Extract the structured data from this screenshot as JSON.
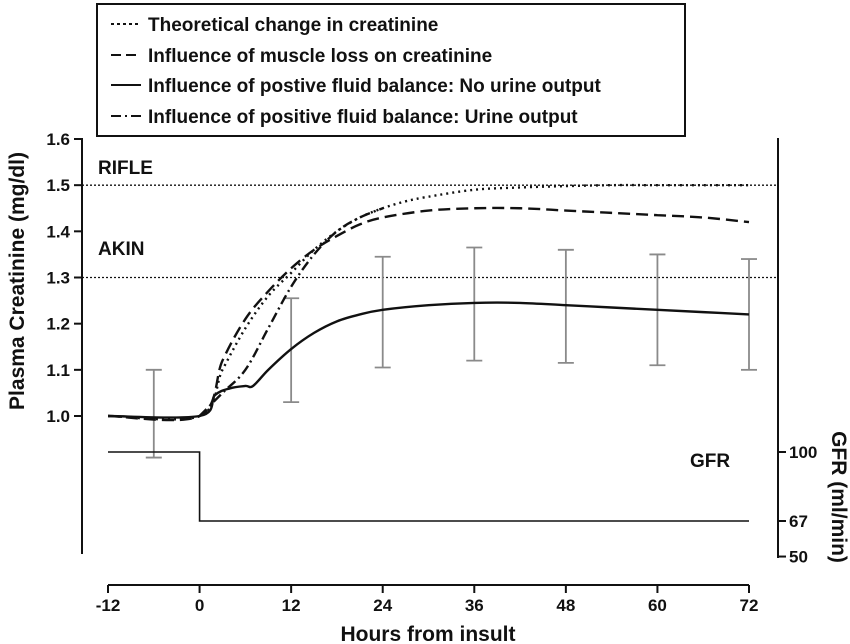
{
  "chart_data": {
    "type": "line",
    "xlabel": "Hours from insult",
    "ylabel": "Plasma Creatinine (mg/dl)",
    "y2label": "GFR (ml/min)",
    "xlim": [
      -12,
      72
    ],
    "ylim": [
      0.0,
      1.6
    ],
    "x_ticks": [
      "-12",
      "0",
      "12",
      "24",
      "36",
      "48",
      "60",
      "72"
    ],
    "y_ticks": [
      "1.0",
      "1.1",
      "1.2",
      "1.3",
      "1.4",
      "1.5",
      "1.6"
    ],
    "y2_ticks": [
      "100",
      "67",
      "50"
    ],
    "legend": {
      "placement": "top-left",
      "entries": [
        "Theoretical change in creatinine",
        "Influence of muscle loss on creatinine",
        "Influence of postive fluid balance: No urine output",
        "Influence of positive fluid balance: Urine output"
      ]
    },
    "thresholds": [
      {
        "label": "RIFLE",
        "y": 1.5
      },
      {
        "label": "AKIN",
        "y": 1.3
      }
    ],
    "gfr_label": "GFR",
    "series": [
      {
        "name": "Theoretical change in creatinine",
        "style": "dotted",
        "x": [
          -12,
          0,
          3,
          6,
          9,
          12,
          15,
          18,
          21,
          24,
          27,
          30,
          36,
          42,
          48,
          54,
          60,
          66,
          72
        ],
        "y": [
          1.0,
          1.0,
          1.1,
          1.19,
          1.26,
          1.31,
          1.36,
          1.4,
          1.43,
          1.45,
          1.465,
          1.475,
          1.49,
          1.495,
          1.498,
          1.5,
          1.5,
          1.5,
          1.5
        ]
      },
      {
        "name": "Influence of muscle loss on creatinine",
        "style": "long-dash",
        "x": [
          -12,
          0,
          3,
          6,
          9,
          12,
          15,
          18,
          21,
          24,
          30,
          36,
          42,
          48,
          54,
          60,
          66,
          72
        ],
        "y": [
          1.0,
          1.0,
          1.12,
          1.21,
          1.27,
          1.32,
          1.36,
          1.39,
          1.415,
          1.43,
          1.445,
          1.45,
          1.45,
          1.445,
          1.44,
          1.435,
          1.43,
          1.42
        ]
      },
      {
        "name": "Influence of postive fluid balance: No urine output",
        "style": "solid",
        "x": [
          -12,
          0,
          2,
          4,
          6,
          7,
          9,
          12,
          15,
          18,
          21,
          24,
          30,
          36,
          42,
          48,
          54,
          60,
          66,
          72
        ],
        "y": [
          1.0,
          1.0,
          1.045,
          1.06,
          1.065,
          1.065,
          1.1,
          1.145,
          1.18,
          1.205,
          1.22,
          1.23,
          1.24,
          1.245,
          1.245,
          1.24,
          1.235,
          1.23,
          1.225,
          1.22
        ]
      },
      {
        "name": "Influence of positive fluid balance: Urine output",
        "style": "dash-dot",
        "x": [
          0,
          3,
          6,
          9,
          12,
          15,
          18,
          21,
          24
        ],
        "y": [
          1.0,
          1.05,
          1.1,
          1.19,
          1.28,
          1.35,
          1.4,
          1.43,
          1.45
        ]
      }
    ],
    "error_bars": [
      {
        "x": -6,
        "low": 0.91,
        "high": 1.1
      },
      {
        "x": 12,
        "low": 1.03,
        "high": 1.255
      },
      {
        "x": 24,
        "low": 1.105,
        "high": 1.345
      },
      {
        "x": 36,
        "low": 1.12,
        "high": 1.365
      },
      {
        "x": 48,
        "low": 1.115,
        "high": 1.36
      },
      {
        "x": 60,
        "low": 1.11,
        "high": 1.35
      },
      {
        "x": 72,
        "low": 1.1,
        "high": 1.34
      }
    ],
    "gfr": {
      "x": [
        -12,
        0,
        0,
        72
      ],
      "y": [
        100,
        100,
        67,
        67
      ]
    }
  }
}
